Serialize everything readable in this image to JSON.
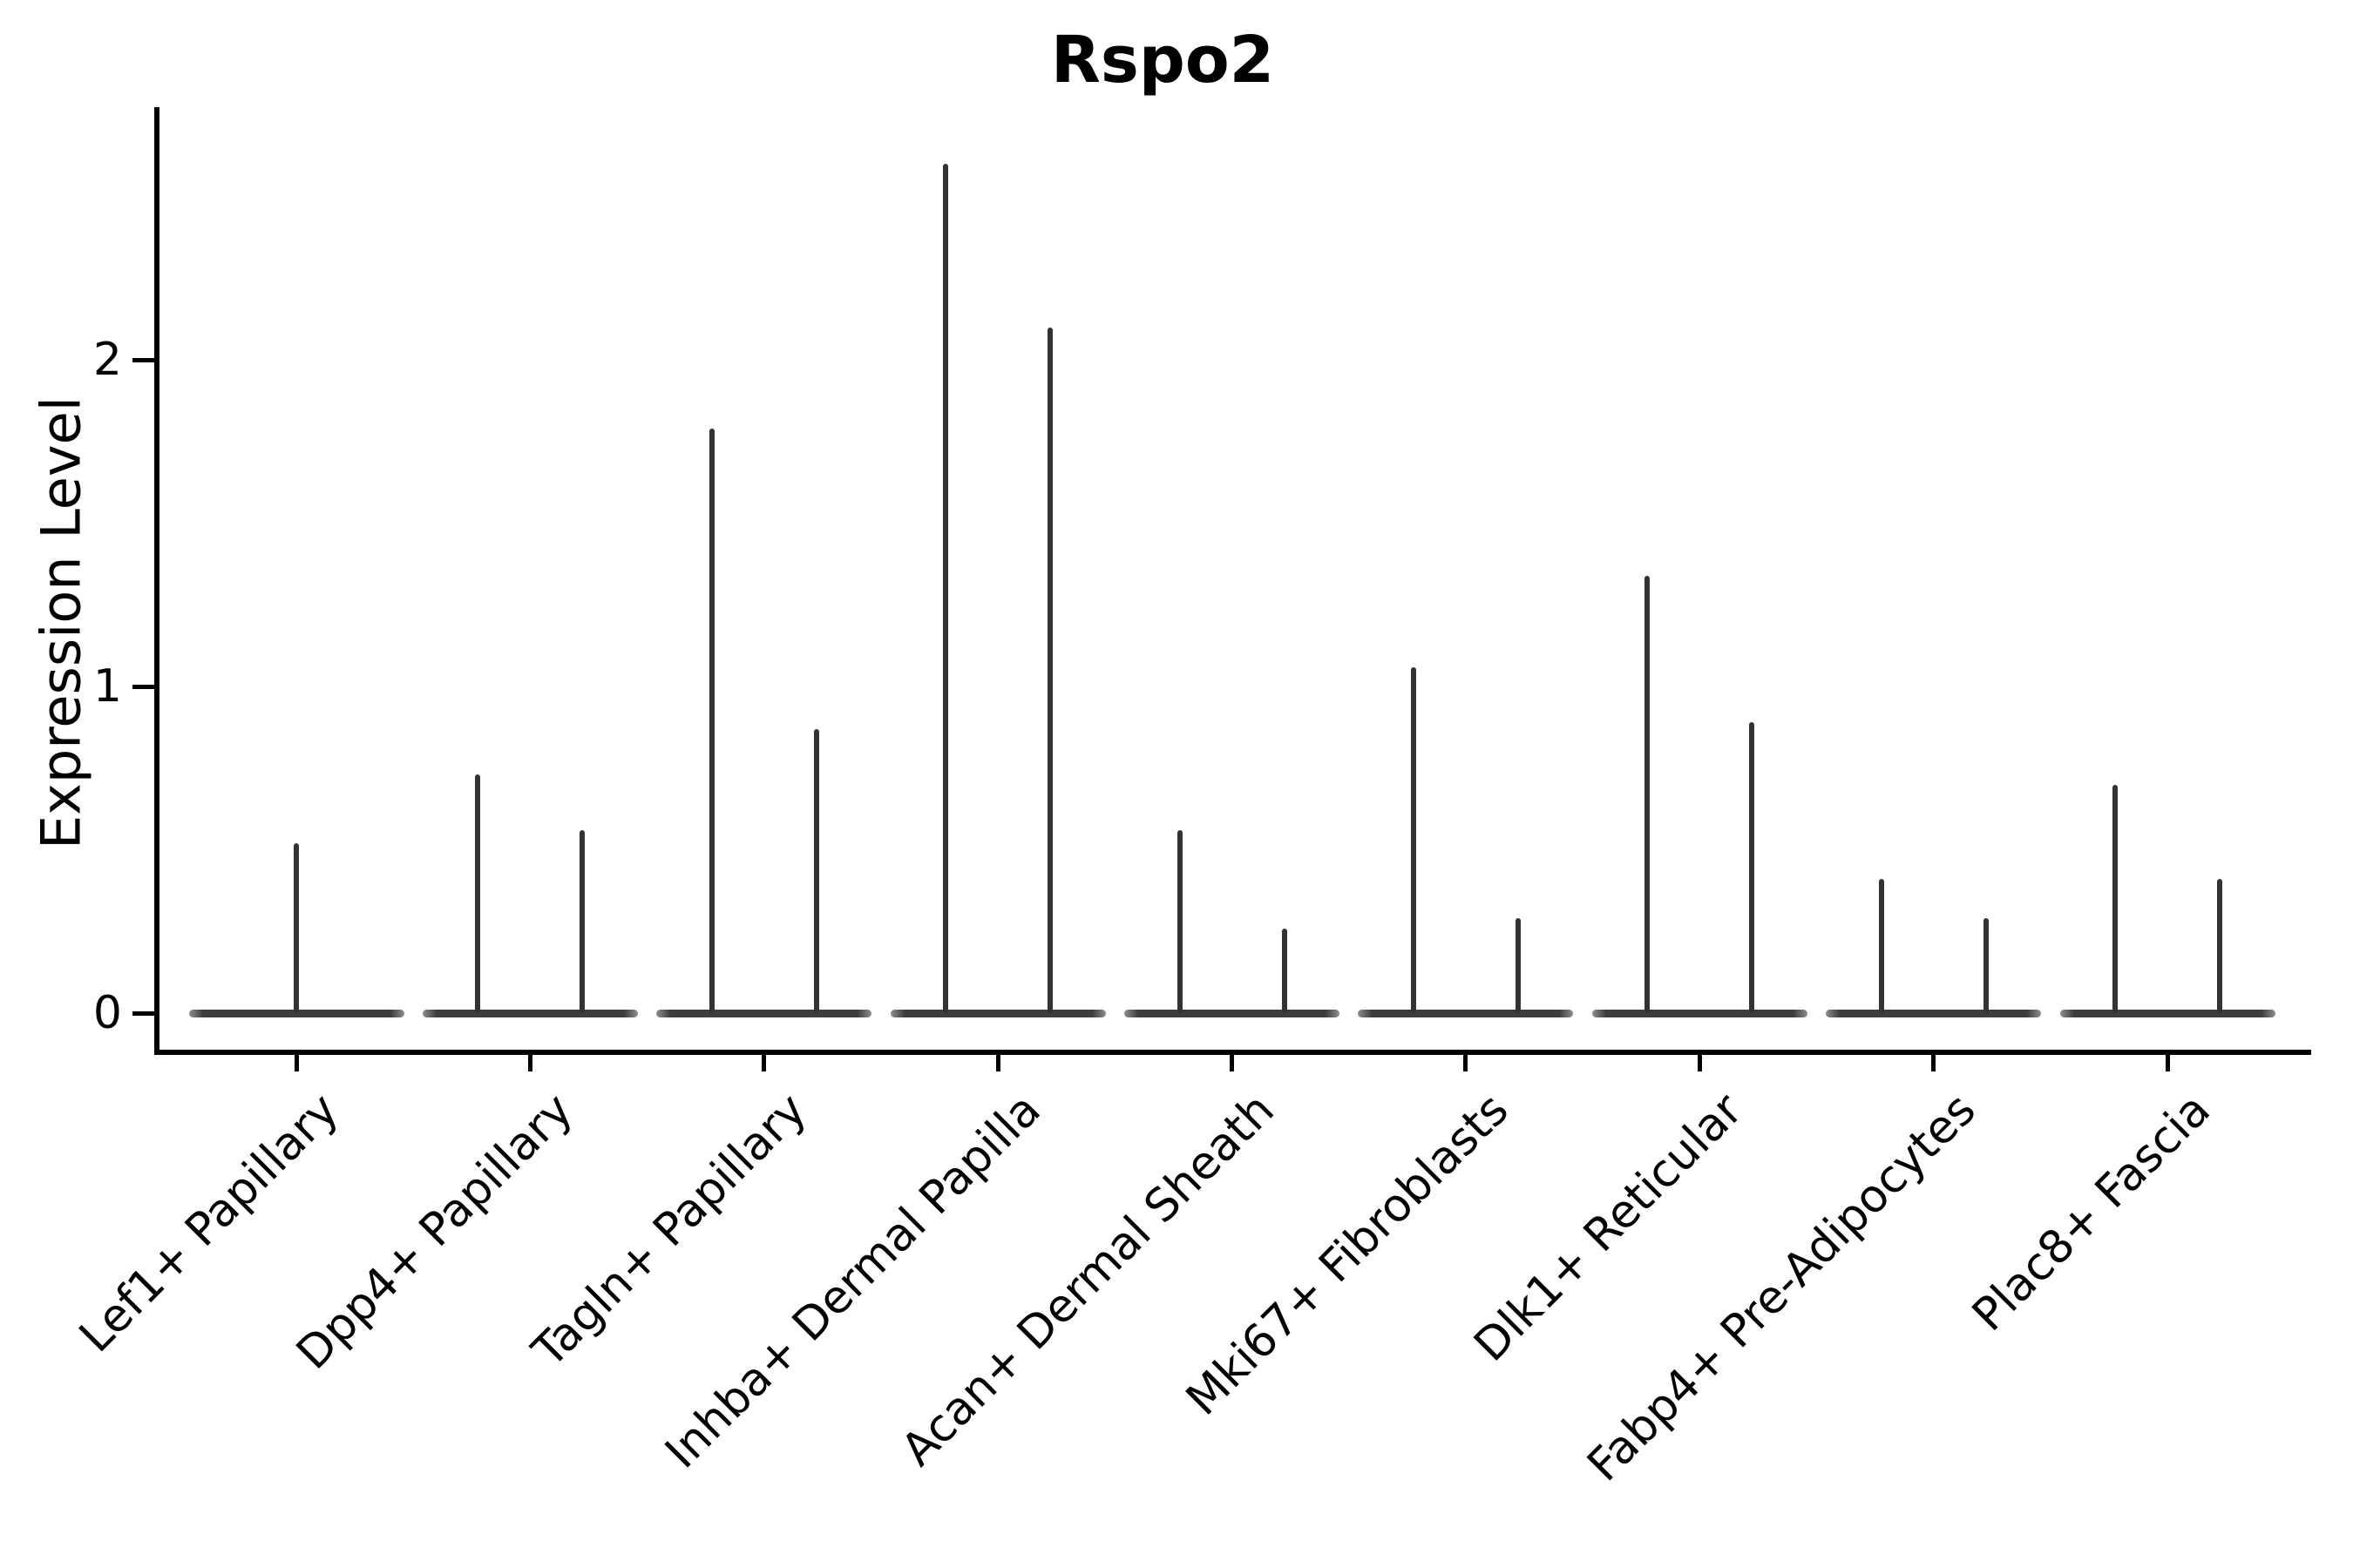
{
  "figure": {
    "title": "Rspo2",
    "ylabel": "Expression Level"
  },
  "chart_data": {
    "type": "violin",
    "title": "Rspo2",
    "xlabel": "",
    "ylabel": "Expression Level",
    "categories": [
      "Lef1+ Papillary",
      "Dpp4+ Papillary",
      "Tagln+ Papillary",
      "Inhba+ Dermal Papilla",
      "Acan+ Dermal Sheath",
      "Mki67+ Fibroblasts",
      "Dlk1+ Reticular",
      "Fabp4+ Pre-Adipocytes",
      "Plac8+ Fascia"
    ],
    "violins": [
      {
        "category": "Lef1+ Papillary",
        "spike_values": [
          0.52
        ]
      },
      {
        "category": "Dpp4+ Papillary",
        "spike_values": [
          0.73,
          0.56
        ]
      },
      {
        "category": "Tagln+ Papillary",
        "spike_values": [
          1.79,
          0.87
        ]
      },
      {
        "category": "Inhba+ Dermal Papilla",
        "spike_values": [
          2.6,
          2.1
        ]
      },
      {
        "category": "Acan+ Dermal Sheath",
        "spike_values": [
          0.56,
          0.26
        ]
      },
      {
        "category": "Mki67+ Fibroblasts",
        "spike_values": [
          1.06,
          0.29
        ]
      },
      {
        "category": "Dlk1+ Reticular",
        "spike_values": [
          1.34,
          0.89
        ]
      },
      {
        "category": "Fabp4+ Pre-Adipocytes",
        "spike_values": [
          0.41,
          0.29
        ]
      },
      {
        "category": "Plac8+ Fascia",
        "spike_values": [
          0.7,
          0.41
        ]
      }
    ],
    "description": "Violin plot of gene expression; each violin is a flat density base at 0 with thin vertical spikes up to the maximum expression value. First category shows one centered spike; all others show two spikes.",
    "yticks": [
      0,
      1,
      2
    ],
    "ylim": [
      -0.13,
      2.77
    ],
    "grid": false,
    "legend": "none",
    "xtick_rotation_deg": 45,
    "style": {
      "line_color": "#333333",
      "base_color": "#3d3d3d",
      "base_end_color": "#8f8f8f",
      "axis_color": "#000000",
      "background": "#ffffff"
    }
  }
}
